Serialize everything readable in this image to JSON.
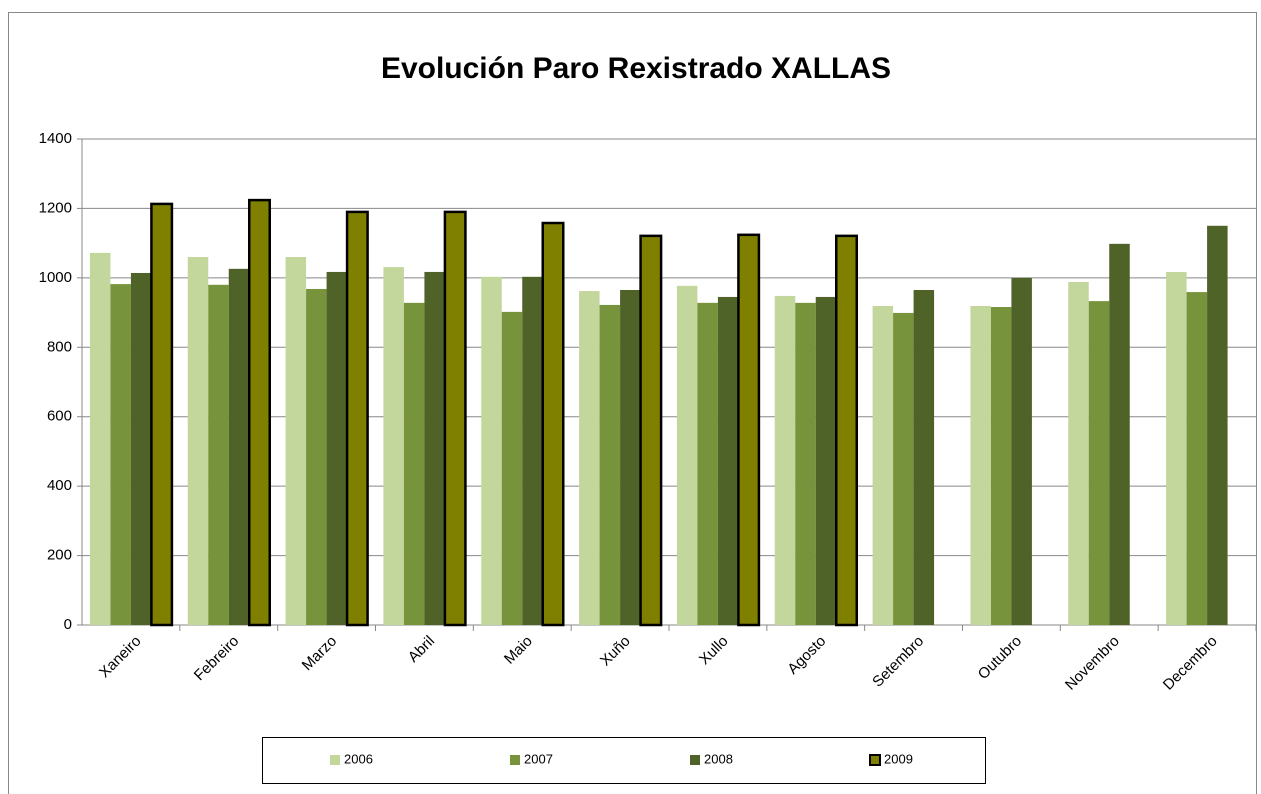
{
  "chart_data": {
    "type": "bar",
    "title": "Evolución Paro Rexistrado XALLAS",
    "categories": [
      "Xaneiro",
      "Febreiro",
      "Marzo",
      "Abril",
      "Maio",
      "Xuño",
      "Xullo",
      "Agosto",
      "Setembro",
      "Outubro",
      "Novembro",
      "Decembro"
    ],
    "series": [
      {
        "name": "2006",
        "color": "#c3d69b",
        "values": [
          1072,
          1060,
          1060,
          1031,
          1003,
          962,
          977,
          948,
          919,
          919,
          988,
          1017
        ]
      },
      {
        "name": "2007",
        "color": "#77933c",
        "values": [
          982,
          980,
          968,
          928,
          902,
          922,
          928,
          928,
          899,
          916,
          933,
          959
        ]
      },
      {
        "name": "2008",
        "color": "#4f6228",
        "values": [
          1014,
          1026,
          1017,
          1017,
          1003,
          965,
          945,
          945,
          965,
          1000,
          1098,
          1150
        ]
      },
      {
        "name": "2009",
        "color": "#808000",
        "values": [
          1213,
          1224,
          1190,
          1190,
          1158,
          1121,
          1124,
          1121,
          null,
          null,
          null,
          null
        ]
      }
    ],
    "ylim": [
      0,
      1400
    ],
    "yticks": [
      0,
      200,
      400,
      600,
      800,
      1000,
      1200,
      1400
    ],
    "grid": true,
    "legend": "bottom"
  }
}
